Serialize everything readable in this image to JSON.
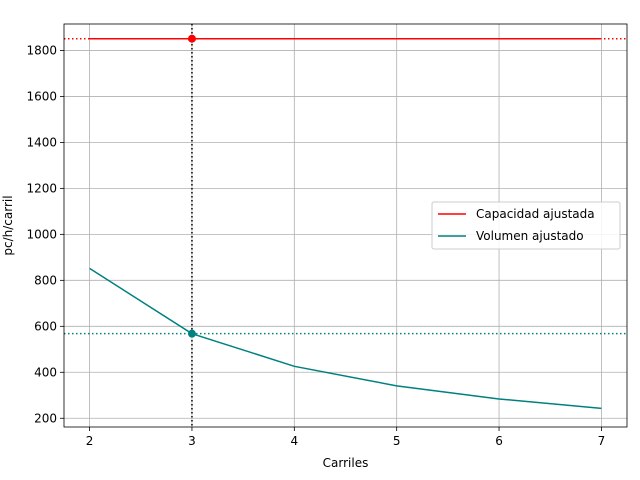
{
  "chart_data": {
    "type": "line",
    "xlabel": "Carriles",
    "ylabel": "pc/h/carril",
    "xlim": [
      1.75,
      7.25
    ],
    "ylim": [
      162,
      1915
    ],
    "xticks": [
      2,
      3,
      4,
      5,
      6,
      7
    ],
    "yticks": [
      200,
      400,
      600,
      800,
      1000,
      1200,
      1400,
      1600,
      1800
    ],
    "grid": true,
    "legend_position": "center-right",
    "x": [
      2,
      3,
      4,
      5,
      6,
      7
    ],
    "series": [
      {
        "name": "Capacidad ajustada",
        "color": "#ff0000",
        "values": [
          1851,
          1851,
          1851,
          1851,
          1851,
          1851
        ]
      },
      {
        "name": "Volumen ajustado",
        "color": "#008080",
        "values": [
          852,
          568,
          426,
          341,
          284,
          243
        ]
      }
    ],
    "reference_lines": [
      {
        "orientation": "horizontal",
        "value": 1851,
        "color": "#ff0000",
        "style": "dotted"
      },
      {
        "orientation": "horizontal",
        "value": 568,
        "color": "#008080",
        "style": "dotted"
      },
      {
        "orientation": "vertical",
        "value": 3,
        "color": "#000000",
        "style": "dotted"
      }
    ],
    "markers": [
      {
        "x": 3,
        "y": 1851,
        "color": "#ff0000"
      },
      {
        "x": 3,
        "y": 568,
        "color": "#008080"
      }
    ]
  }
}
